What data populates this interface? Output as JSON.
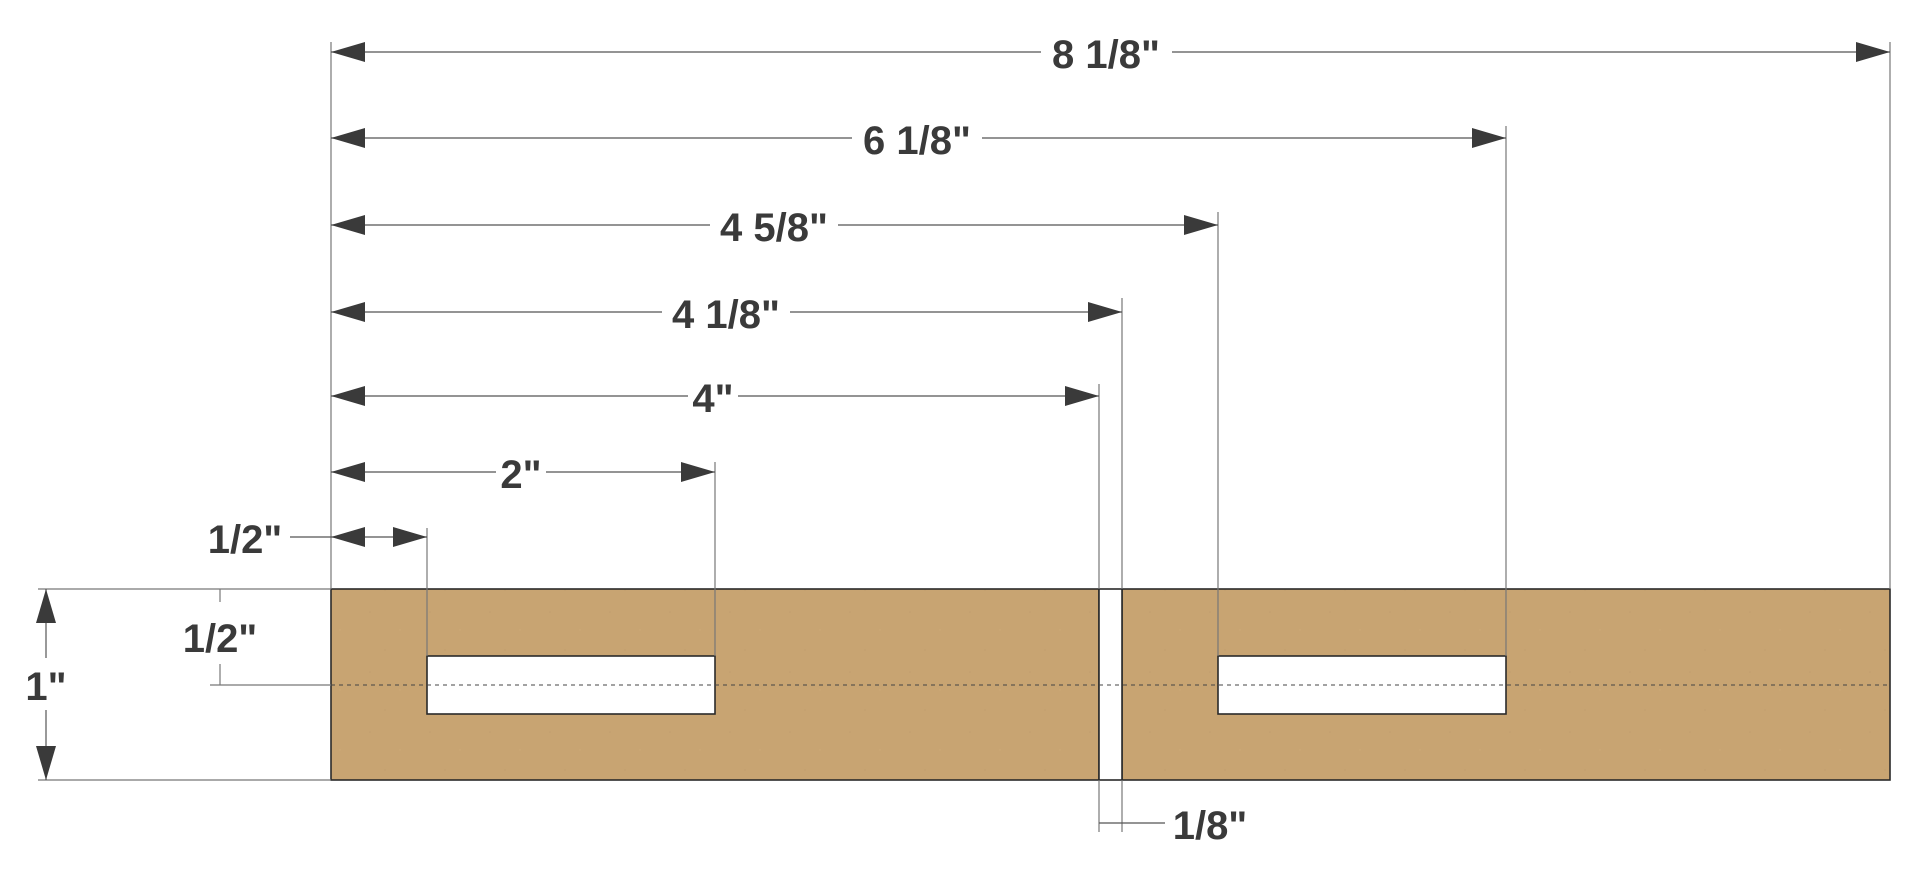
{
  "colors": {
    "wood": "#c8a472",
    "wood_edge": "#2a2a2a",
    "line": "#555555",
    "arrow": "#3a3a3a",
    "text": "#3a3a3a",
    "slot": "#ffffff"
  },
  "dimensions": {
    "overall_length": "8 1/8\"",
    "slot2_end": "6 1/8\"",
    "slot2_start": "4 5/8\"",
    "cut_end": "4 1/8\"",
    "cut_start": "4\"",
    "slot1_end": "2\"",
    "slot1_start": "1/2\"",
    "slot_center": "1/2\"",
    "height": "1\"",
    "cut_width": "1/8\""
  }
}
